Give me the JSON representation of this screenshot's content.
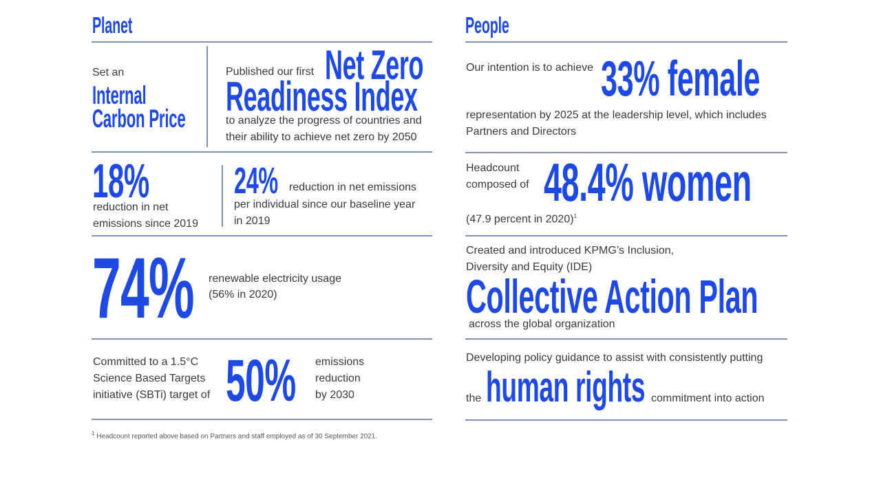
{
  "planet": {
    "heading": "Planet",
    "carbon_price": {
      "intro": "Set an",
      "highlight_line1": "Internal",
      "highlight_line2": "Carbon Price"
    },
    "readiness_index": {
      "intro": "Published our first",
      "highlight_line1": "Net Zero",
      "highlight_line2": "Readiness Index",
      "desc_line1": "to analyze the progress of countries and",
      "desc_line2": "their ability to achieve net zero by 2050"
    },
    "reduction_18": {
      "value": "18%",
      "desc_line1": "reduction in net",
      "desc_line2": "emissions since 2019"
    },
    "reduction_24": {
      "value": "24%",
      "desc_line1": "reduction in net emissions",
      "desc_line2": "per individual since our baseline year",
      "desc_line3": "in 2019"
    },
    "renewable": {
      "value": "74%",
      "desc_line1": "renewable electricity usage",
      "desc_line2": "(56% in 2020)"
    },
    "sbti": {
      "intro_line1": "Committed to a 1.5°C",
      "intro_line2": "Science Based Targets",
      "intro_line3": "initiative (SBTi) target of",
      "value": "50%",
      "desc_line1": "emissions",
      "desc_line2": "reduction",
      "desc_line3": "by 2030"
    },
    "footnote": "Headcount reported above based on Partners and staff employed as of 30 September 2021.",
    "footnote_mark": "1"
  },
  "people": {
    "heading": "People",
    "female": {
      "intro": "Our intention is to achieve",
      "highlight": "33% female",
      "desc_line1": "representation by 2025 at the leadership level, which includes",
      "desc_line2": "Partners and Directors"
    },
    "women": {
      "intro_line1": "Headcount",
      "intro_line2": "composed of",
      "highlight": "48.4% women",
      "desc": "(47.9 percent in 2020)",
      "footnote_mark": "1"
    },
    "ide": {
      "intro_line1": "Created and introduced KPMG’s Inclusion,",
      "intro_line2": "Diversity and Equity (IDE)",
      "highlight": "Collective Action Plan",
      "desc": "across the global organization"
    },
    "human_rights": {
      "intro": "Developing policy guidance to assist with consistently putting",
      "pre": "the",
      "highlight": "human rights",
      "post": "commitment into action"
    }
  },
  "colors": {
    "accent": "#1E49E2",
    "rule": "#7f8fbf",
    "text": "#3a3a3a"
  }
}
